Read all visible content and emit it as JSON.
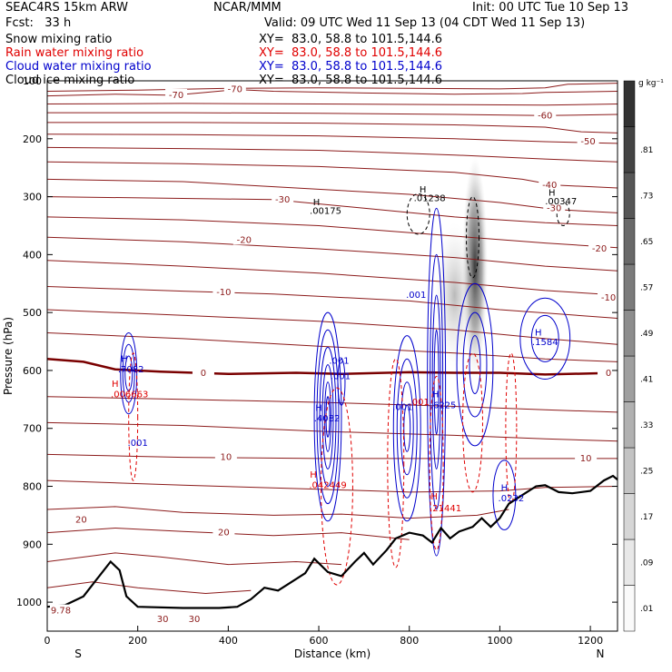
{
  "header": {
    "model": "SEAC4RS 15km ARW",
    "institution": "NCAR/MMM",
    "init": "Init: 00 UTC Tue 10 Sep 13",
    "fcst": "Fcst:   33 h",
    "valid": "Valid: 09 UTC Wed 11 Sep 13 (04 CDT Wed 11 Sep 13)",
    "fields": [
      {
        "name": "Snow mixing ratio",
        "xy": "XY=  83.0, 58.8 to 101.5,144.6",
        "color": "#000000"
      },
      {
        "name": "Rain water mixing ratio",
        "xy": "XY=  83.0, 58.8 to 101.5,144.6",
        "color": "#e00000"
      },
      {
        "name": "Cloud water mixing ratio",
        "xy": "XY=  83.0, 58.8 to 101.5,144.6",
        "color": "#0000cc"
      },
      {
        "name": "Cloud ice mixing ratio",
        "xy": "XY=  83.0, 58.8 to 101.5,144.6",
        "color": "#000000"
      }
    ]
  },
  "chart_data": {
    "type": "cross-section",
    "xlabel": "Distance (km)",
    "ylabel": "Pressure (hPa)",
    "x_ticks": [
      0,
      200,
      400,
      600,
      800,
      1000,
      1200
    ],
    "y_ticks": [
      100,
      200,
      300,
      400,
      500,
      600,
      700,
      800,
      900,
      1000
    ],
    "xlim": [
      0,
      1260
    ],
    "ylim": [
      1050,
      100
    ],
    "x_end_labels": {
      "left": "S",
      "right": "N"
    },
    "colorbar": {
      "unit": "g kg⁻¹",
      "labels": [
        ".01",
        ".09",
        ".17",
        ".25",
        ".33",
        ".41",
        ".49",
        ".57",
        ".65",
        ".73",
        ".81"
      ]
    },
    "temperature_labels": [
      {
        "text": "-70",
        "x": 285,
        "p": 125
      },
      {
        "text": "-70",
        "x": 415,
        "p": 115
      },
      {
        "text": "-60",
        "x": 1100,
        "p": 160
      },
      {
        "text": "-50",
        "x": 1195,
        "p": 205
      },
      {
        "text": "-40",
        "x": 1110,
        "p": 280
      },
      {
        "text": "-30",
        "x": 520,
        "p": 305
      },
      {
        "text": "-30",
        "x": 1120,
        "p": 320
      },
      {
        "text": "-20",
        "x": 435,
        "p": 375
      },
      {
        "text": "-20",
        "x": 1220,
        "p": 390
      },
      {
        "text": "-10",
        "x": 390,
        "p": 465
      },
      {
        "text": "-10",
        "x": 1240,
        "p": 475
      },
      {
        "text": "0",
        "x": 345,
        "p": 605
      },
      {
        "text": "0",
        "x": 1240,
        "p": 605
      },
      {
        "text": "10",
        "x": 395,
        "p": 750
      },
      {
        "text": "10",
        "x": 1190,
        "p": 752
      },
      {
        "text": "20",
        "x": 75,
        "p": 858
      },
      {
        "text": "20",
        "x": 390,
        "p": 880
      },
      {
        "text": "30",
        "x": 255,
        "p": 1030
      },
      {
        "text": "30",
        "x": 325,
        "p": 1030
      },
      {
        "text": "9.78",
        "x": 30,
        "p": 1015
      }
    ],
    "extrema_labels": [
      {
        "text": "H",
        "x": 170,
        "p": 585,
        "color": "#0000cc"
      },
      {
        "text": ".7082",
        "x": 185,
        "p": 603,
        "color": "#0000cc"
      },
      {
        "text": "H",
        "x": 150,
        "p": 628,
        "color": "#e00000"
      },
      {
        "text": ".006663",
        "x": 182,
        "p": 646,
        "color": "#e00000"
      },
      {
        "text": ".001",
        "x": 200,
        "p": 730,
        "color": "#0000cc"
      },
      {
        "text": "H",
        "x": 595,
        "p": 315,
        "color": "#000000"
      },
      {
        "text": ".00175",
        "x": 615,
        "p": 330,
        "color": "#000000"
      },
      {
        "text": "H",
        "x": 830,
        "p": 293,
        "color": "#000000"
      },
      {
        "text": ".01238",
        "x": 845,
        "p": 308,
        "color": "#000000"
      },
      {
        "text": "H",
        "x": 1115,
        "p": 298,
        "color": "#000000"
      },
      {
        "text": ".00347",
        "x": 1135,
        "p": 313,
        "color": "#000000"
      },
      {
        "text": ".001",
        "x": 815,
        "p": 475,
        "color": "#0000cc"
      },
      {
        "text": ".001",
        "x": 645,
        "p": 588,
        "color": "#0000cc"
      },
      {
        "text": ".001",
        "x": 648,
        "p": 615,
        "color": "#0000cc"
      },
      {
        "text": "H",
        "x": 1085,
        "p": 540,
        "color": "#0000cc"
      },
      {
        "text": ".1584",
        "x": 1100,
        "p": 556,
        "color": "#0000cc"
      },
      {
        "text": "H",
        "x": 600,
        "p": 670,
        "color": "#0000cc"
      },
      {
        "text": ".4082",
        "x": 618,
        "p": 688,
        "color": "#0000cc"
      },
      {
        "text": ".001",
        "x": 785,
        "p": 668,
        "color": "#0000cc"
      },
      {
        "text": ".001",
        "x": 822,
        "p": 660,
        "color": "#e00000"
      },
      {
        "text": "H",
        "x": 858,
        "p": 646,
        "color": "#0000cc"
      },
      {
        "text": ".6225",
        "x": 875,
        "p": 665,
        "color": "#0000cc"
      },
      {
        "text": "H",
        "x": 588,
        "p": 785,
        "color": "#e00000"
      },
      {
        "text": ".042449",
        "x": 620,
        "p": 803,
        "color": "#e00000"
      },
      {
        "text": "H",
        "x": 855,
        "p": 823,
        "color": "#e00000"
      },
      {
        "text": ".21441",
        "x": 880,
        "p": 843,
        "color": "#e00000"
      },
      {
        "text": "H",
        "x": 1010,
        "p": 808,
        "color": "#0000cc"
      },
      {
        "text": ".0232",
        "x": 1025,
        "p": 826,
        "color": "#0000cc"
      }
    ],
    "terrain_surface": [
      [
        0,
        1008
      ],
      [
        40,
        1005
      ],
      [
        80,
        990
      ],
      [
        110,
        960
      ],
      [
        140,
        930
      ],
      [
        160,
        945
      ],
      [
        175,
        990
      ],
      [
        200,
        1008
      ],
      [
        300,
        1010
      ],
      [
        380,
        1010
      ],
      [
        420,
        1008
      ],
      [
        450,
        995
      ],
      [
        480,
        975
      ],
      [
        510,
        980
      ],
      [
        540,
        965
      ],
      [
        570,
        950
      ],
      [
        590,
        925
      ],
      [
        620,
        948
      ],
      [
        650,
        955
      ],
      [
        680,
        930
      ],
      [
        700,
        915
      ],
      [
        720,
        935
      ],
      [
        750,
        910
      ],
      [
        770,
        890
      ],
      [
        800,
        880
      ],
      [
        830,
        885
      ],
      [
        850,
        897
      ],
      [
        870,
        872
      ],
      [
        890,
        890
      ],
      [
        910,
        878
      ],
      [
        940,
        870
      ],
      [
        960,
        855
      ],
      [
        980,
        870
      ],
      [
        1000,
        855
      ],
      [
        1020,
        830
      ],
      [
        1050,
        815
      ],
      [
        1080,
        800
      ],
      [
        1100,
        798
      ],
      [
        1130,
        810
      ],
      [
        1160,
        812
      ],
      [
        1200,
        808
      ],
      [
        1230,
        790
      ],
      [
        1250,
        782
      ],
      [
        1270,
        795
      ]
    ]
  }
}
